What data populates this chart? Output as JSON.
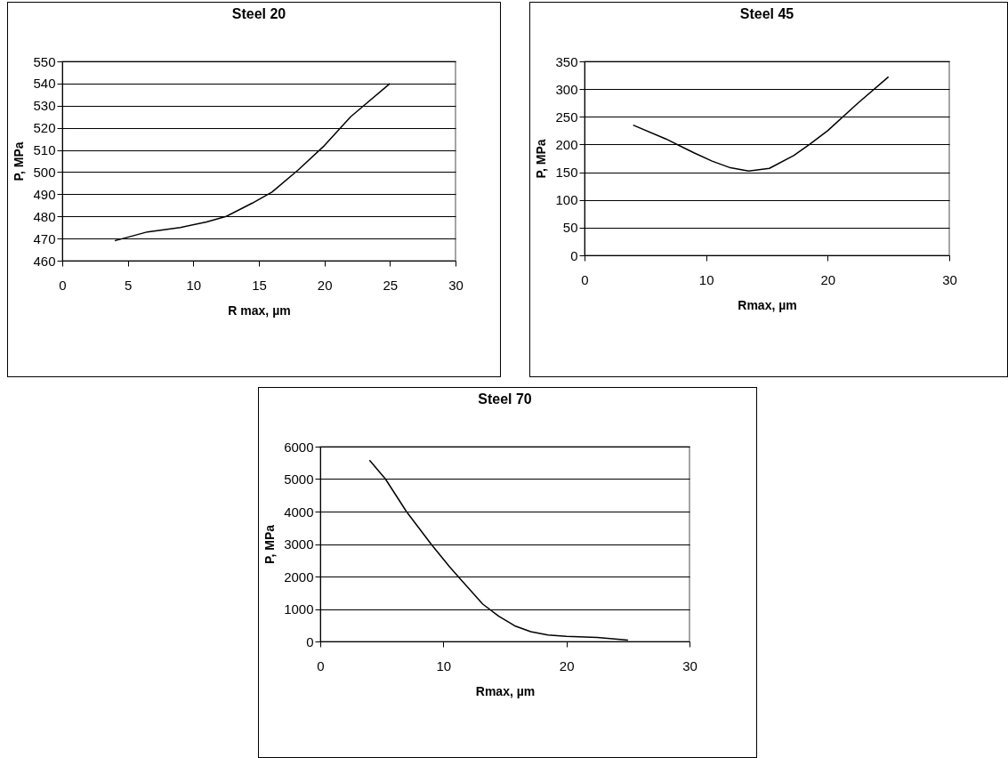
{
  "chart_data": [
    {
      "type": "line",
      "title": "Steel 20",
      "xlabel": "R max, µm",
      "ylabel": "P, MPa",
      "xlim": [
        0,
        30
      ],
      "xticks": [
        0,
        5,
        10,
        15,
        20,
        25,
        30
      ],
      "ylim": [
        460,
        550
      ],
      "yticks": [
        460,
        470,
        480,
        490,
        500,
        510,
        520,
        530,
        540,
        550
      ],
      "grid": "y",
      "legend": false,
      "line_style": "solid",
      "series": [
        {
          "color": "#000000",
          "x": [
            4,
            6.5,
            9,
            11,
            12.5,
            14.5,
            16,
            18,
            20,
            22,
            23,
            25
          ],
          "values": [
            469,
            473,
            475,
            477.5,
            480,
            486,
            491,
            501,
            512,
            525,
            530,
            540
          ]
        }
      ]
    },
    {
      "type": "line",
      "title": "Steel 45",
      "xlabel": "Rmax, µm",
      "ylabel": "P, MPa",
      "xlim": [
        0,
        30
      ],
      "xticks": [
        0,
        10,
        20,
        30
      ],
      "ylim": [
        0,
        350
      ],
      "yticks": [
        0,
        50,
        100,
        150,
        200,
        250,
        300,
        350
      ],
      "grid": "y",
      "legend": false,
      "line_style": "solid",
      "series": [
        {
          "color": "#000000",
          "x": [
            4,
            6.7,
            9,
            10.5,
            12,
            13.5,
            15.2,
            17.2,
            18.5,
            20,
            22.5,
            25
          ],
          "values": [
            235,
            210,
            185,
            170,
            158,
            152,
            157,
            180,
            200,
            225,
            275,
            322
          ]
        }
      ]
    },
    {
      "type": "line",
      "title": "Steel 70",
      "xlabel": "Rmax, µm",
      "ylabel": "P, MPa",
      "xlim": [
        0,
        30
      ],
      "xticks": [
        0,
        10,
        20,
        30
      ],
      "ylim": [
        0,
        6000
      ],
      "yticks": [
        0,
        1000,
        2000,
        3000,
        4000,
        5000,
        6000
      ],
      "grid": "y",
      "legend": false,
      "line_style": "solid",
      "series": [
        {
          "color": "#000000",
          "x": [
            4,
            5.3,
            7,
            9,
            10.5,
            11.2,
            13.2,
            14.5,
            15.8,
            17.1,
            18.5,
            20,
            22.5,
            25
          ],
          "values": [
            5580,
            5000,
            4000,
            3000,
            2300,
            2000,
            1150,
            780,
            480,
            300,
            200,
            160,
            120,
            40
          ]
        }
      ]
    }
  ]
}
